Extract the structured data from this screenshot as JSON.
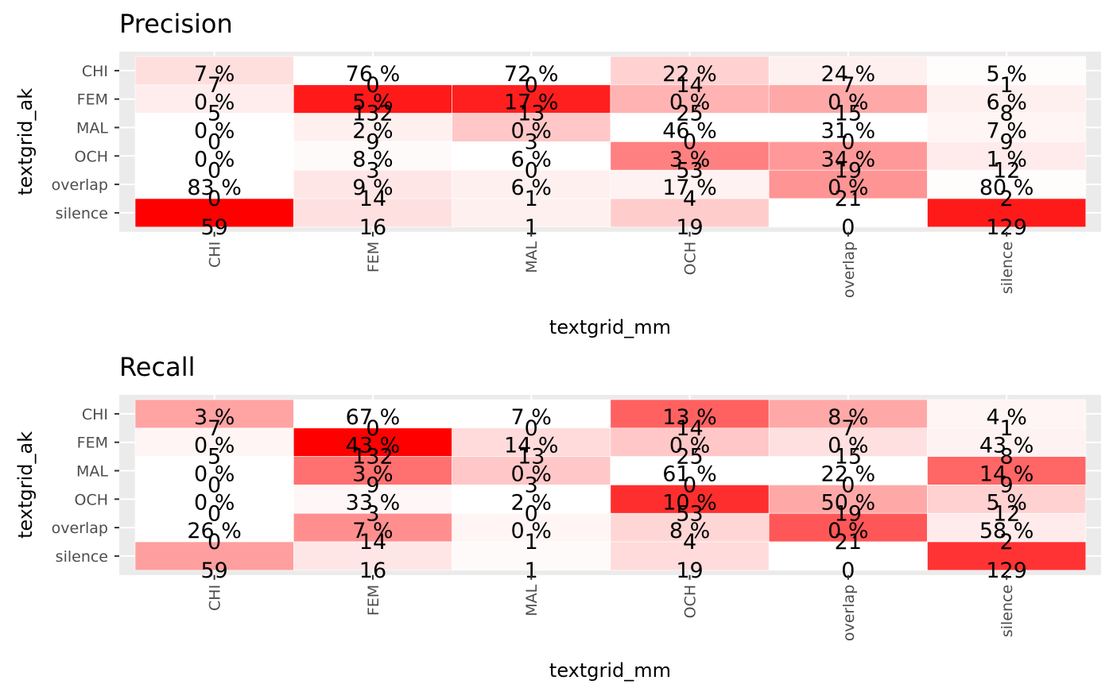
{
  "chart_data": [
    {
      "type": "heatmap",
      "title": "Precision",
      "xlabel": "textgrid_mm",
      "ylabel": "textgrid_ak",
      "x": [
        "CHI",
        "FEM",
        "MAL",
        "OCH",
        "overlap",
        "silence"
      ],
      "y": [
        "CHI",
        "FEM",
        "MAL",
        "OCH",
        "overlap",
        "silence"
      ],
      "fill_scale": {
        "low": "#FFFFFF",
        "high": "#FF0000"
      },
      "grid": true,
      "legend": "none",
      "fill": [
        [
          0.13,
          0.0,
          0.0,
          0.18,
          0.06,
          0.01
        ],
        [
          0.07,
          0.9,
          0.88,
          0.3,
          0.34,
          0.06
        ],
        [
          0.0,
          0.06,
          0.22,
          0.0,
          0.0,
          0.04
        ],
        [
          0.0,
          0.02,
          0.0,
          0.5,
          0.4,
          0.08
        ],
        [
          0.0,
          0.1,
          0.06,
          0.05,
          0.42,
          0.01
        ],
        [
          1.0,
          0.12,
          0.06,
          0.2,
          0.0,
          0.9
        ]
      ],
      "counts": [
        [
          "7",
          "0",
          "0",
          "14",
          "7",
          "1"
        ],
        [
          "5",
          "132",
          "13",
          "25",
          "15",
          "8"
        ],
        [
          "0",
          "9",
          "3",
          "0",
          "0",
          "9"
        ],
        [
          "0",
          "3",
          "0",
          "53",
          "19",
          "12"
        ],
        [
          "0",
          "14",
          "1",
          "4",
          "21",
          "2"
        ],
        [
          "59",
          "16",
          "1",
          "19",
          "0",
          "129"
        ]
      ],
      "percents": [
        [
          "7 %",
          "76 %",
          "72 %",
          "22 %",
          "24 %",
          "5 %"
        ],
        [
          "0 %",
          "5 %",
          "17 %",
          "0 %",
          "0 %",
          "6 %"
        ],
        [
          "0 %",
          "2 %",
          "0 %",
          "46 %",
          "31 %",
          "7 %"
        ],
        [
          "0 %",
          "8 %",
          "6 %",
          "3 %",
          "34 %",
          "1 %"
        ],
        [
          "83 %",
          "9 %",
          "6 %",
          "17 %",
          "0 %",
          "80 %"
        ],
        [
          "",
          "",
          "",
          "",
          "",
          ""
        ]
      ]
    },
    {
      "type": "heatmap",
      "title": "Recall",
      "xlabel": "textgrid_mm",
      "ylabel": "textgrid_ak",
      "x": [
        "CHI",
        "FEM",
        "MAL",
        "OCH",
        "overlap",
        "silence"
      ],
      "y": [
        "CHI",
        "FEM",
        "MAL",
        "OCH",
        "overlap",
        "silence"
      ],
      "fill_scale": {
        "low": "#FFFFFF",
        "high": "#FF0000"
      },
      "grid": true,
      "legend": "none",
      "fill": [
        [
          0.36,
          0.0,
          0.0,
          0.62,
          0.34,
          0.04
        ],
        [
          0.04,
          1.0,
          0.14,
          0.22,
          0.12,
          0.05
        ],
        [
          0.0,
          0.56,
          0.22,
          0.0,
          0.0,
          0.6
        ],
        [
          0.0,
          0.03,
          0.0,
          0.82,
          0.34,
          0.18
        ],
        [
          0.0,
          0.44,
          0.04,
          0.16,
          0.66,
          0.08
        ],
        [
          0.38,
          0.1,
          0.02,
          0.14,
          0.0,
          0.8
        ]
      ],
      "counts": [
        [
          "7",
          "0",
          "0",
          "14",
          "7",
          "1"
        ],
        [
          "5",
          "132",
          "13",
          "25",
          "15",
          "8"
        ],
        [
          "0",
          "9",
          "3",
          "0",
          "0",
          "9"
        ],
        [
          "0",
          "3",
          "0",
          "53",
          "19",
          "12"
        ],
        [
          "0",
          "14",
          "1",
          "4",
          "21",
          "2"
        ],
        [
          "59",
          "16",
          "1",
          "19",
          "0",
          "129"
        ]
      ],
      "percents": [
        [
          "3 %",
          "67 %",
          "7 %",
          "13 %",
          "8 %",
          "4 %"
        ],
        [
          "0 %",
          "43 %",
          "14 %",
          "0 %",
          "0 %",
          "43 %"
        ],
        [
          "0 %",
          "3 %",
          "0 %",
          "61 %",
          "22 %",
          "14 %"
        ],
        [
          "0 %",
          "33 %",
          "2 %",
          "10 %",
          "50 %",
          "5 %"
        ],
        [
          "26 %",
          "7 %",
          "0 %",
          "8 %",
          "0 %",
          "58 %"
        ],
        [
          "",
          "",
          "",
          "",
          "",
          ""
        ]
      ]
    }
  ]
}
